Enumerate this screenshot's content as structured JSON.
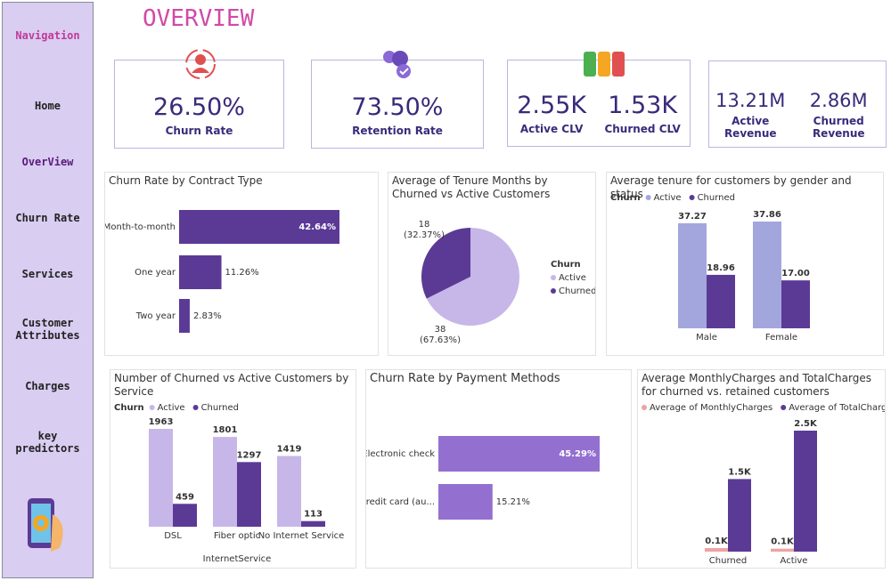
{
  "page_title": "OVERVIEW",
  "nav": {
    "title": "Navigation",
    "items": [
      "Home",
      "OverView",
      "Churn Rate",
      "Services",
      "Customer Attributes",
      "Charges",
      "key predictors"
    ]
  },
  "kpis": [
    {
      "items": [
        {
          "value": "26.50%",
          "label": "Churn Rate"
        }
      ]
    },
    {
      "items": [
        {
          "value": "73.50%",
          "label": "Retention Rate"
        }
      ]
    },
    {
      "items": [
        {
          "value": "2.55K",
          "label": "Active CLV"
        },
        {
          "value": "1.53K",
          "label": "Churned CLV"
        }
      ]
    },
    {
      "items": [
        {
          "value": "13.21M",
          "label": "Active Revenue"
        },
        {
          "value": "2.86M",
          "label": "Churned Revenue"
        }
      ]
    }
  ],
  "chart_data": [
    {
      "type": "hbar",
      "title": "Churn Rate by Contract Type",
      "categories": [
        "Month-to-month",
        "One year",
        "Two year"
      ],
      "values": [
        42.64,
        11.26,
        2.83
      ],
      "value_labels": [
        "42.64%",
        "11.26%",
        "2.83%"
      ],
      "color": "#5b3a96"
    },
    {
      "type": "pie",
      "title": "Average of Tenure Months by Churned vs Active Customers",
      "legend_title": "Churn",
      "categories": [
        "Active",
        "Churned"
      ],
      "values": [
        38,
        18
      ],
      "shares": [
        67.63,
        32.37
      ],
      "share_labels": [
        "(67.63%)",
        "(32.37%)"
      ],
      "colors": [
        "#c7b6e8",
        "#5b3a96"
      ]
    },
    {
      "type": "grouped",
      "title": "Average tenure for customers by gender and status",
      "legend_title": "Churn",
      "categories": [
        "Male",
        "Female"
      ],
      "series": [
        {
          "name": "Active",
          "color": "#a3a6dd",
          "values": [
            37.27,
            37.86
          ]
        },
        {
          "name": "Churned",
          "color": "#5b3a96",
          "values": [
            18.96,
            17.0
          ],
          "value_labels": [
            "18.96",
            "17.00"
          ]
        }
      ]
    },
    {
      "type": "grouped",
      "title": "Number of Churned vs Active Customers by Service",
      "legend_title": "Churn",
      "x_label": "InternetService",
      "categories": [
        "DSL",
        "Fiber optic",
        "No Internet Service"
      ],
      "series": [
        {
          "name": "Active",
          "color": "#c7b6e8",
          "values": [
            1963,
            1801,
            1419
          ]
        },
        {
          "name": "Churned",
          "color": "#5b3a96",
          "values": [
            459,
            1297,
            113
          ]
        }
      ]
    },
    {
      "type": "hbar",
      "title": "Churn Rate by Payment Methods",
      "categories": [
        "Electronic check",
        "Credit card (au..."
      ],
      "values": [
        45.29,
        15.21
      ],
      "value_labels": [
        "45.29%",
        "15.21%"
      ],
      "color": "#9370d0"
    },
    {
      "type": "grouped",
      "title": "Average MonthlyCharges and TotalCharges for churned vs. retained customers",
      "categories": [
        "Churned",
        "Active"
      ],
      "series": [
        {
          "name": "Average of MonthlyCharges",
          "color": "#eea3a3",
          "values": [
            74,
            61
          ],
          "value_labels": [
            "0.1K",
            "0.1K"
          ]
        },
        {
          "name": "Average of TotalCharges",
          "color": "#5b3a96",
          "values": [
            1500,
            2500
          ],
          "value_labels": [
            "1.5K",
            "2.5K"
          ]
        }
      ]
    }
  ]
}
